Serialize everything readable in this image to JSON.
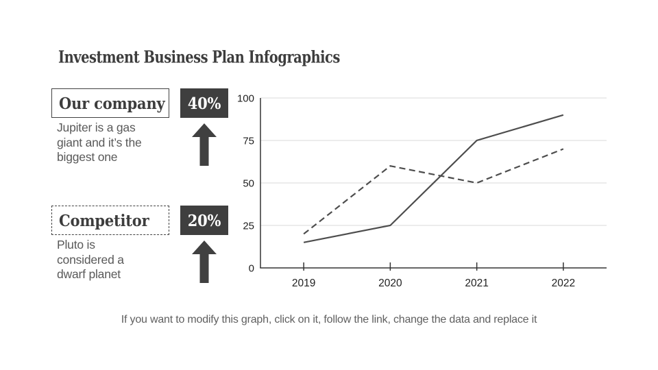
{
  "slide": {
    "title": "Investment Business Plan Infographics",
    "footer": "If you want to modify this graph, click on it, follow the link, change the data and replace it"
  },
  "cards": [
    {
      "label": "Our company",
      "value": "40%",
      "description": "Jupiter is a gas\ngiant and it’s the\nbiggest one",
      "border_style": "solid",
      "trend_icon": "up-arrow"
    },
    {
      "label": "Competitor",
      "value": "20%",
      "description": "Pluto is\nconsidered a\ndwarf planet",
      "border_style": "dashed",
      "trend_icon": "up-arrow"
    }
  ],
  "colors": {
    "dark_box": "#3f3f3f",
    "arrow": "#404040",
    "line": "#4d4d4d",
    "grid": "#d9d9d9",
    "axis": "#333333",
    "axis_label": "#1f1f1f",
    "title_text": "#3d3d3d",
    "body_text": "#595959"
  },
  "chart_data": {
    "type": "line",
    "x": [
      "2019",
      "2020",
      "2021",
      "2022"
    ],
    "series": [
      {
        "name": "Our company",
        "line_style": "solid",
        "values": [
          15,
          25,
          75,
          90
        ]
      },
      {
        "name": "Competitor",
        "line_style": "dashed",
        "values": [
          20,
          60,
          50,
          70
        ]
      }
    ],
    "ylim": [
      0,
      100
    ],
    "yticks": [
      0,
      25,
      50,
      75,
      100
    ],
    "grid": true,
    "legend": "none",
    "xlabel": "",
    "ylabel": ""
  }
}
